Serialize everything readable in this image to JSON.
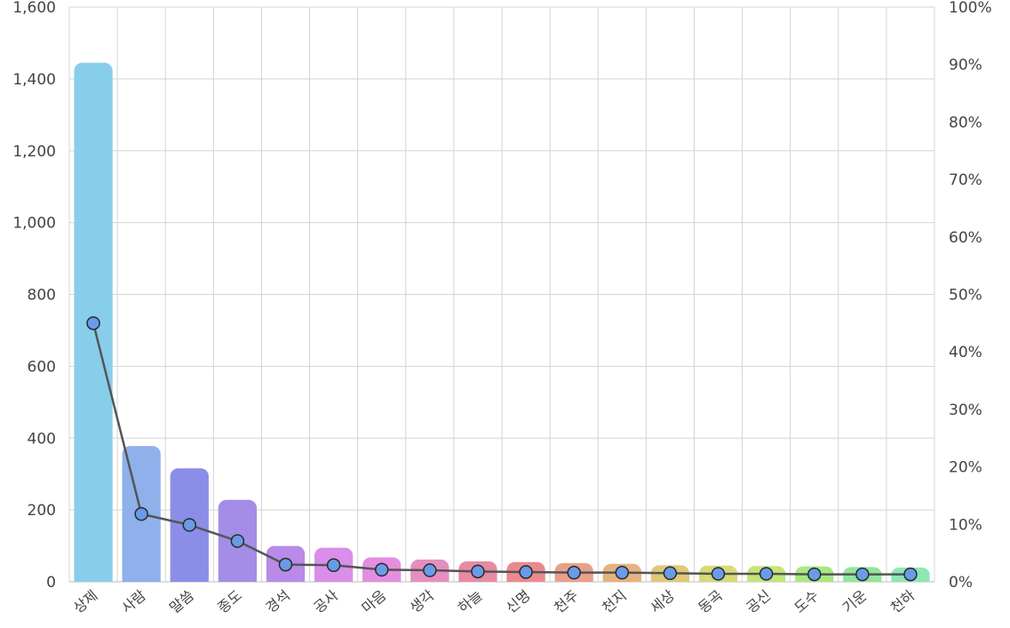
{
  "chart_data": {
    "type": "bar",
    "title": "",
    "xlabel": "",
    "ylabel": "",
    "ylim": [
      0,
      1600
    ],
    "y2lim": [
      0,
      100
    ],
    "grid": true,
    "yticks": [
      "0",
      "200",
      "400",
      "600",
      "800",
      "1,000",
      "1,200",
      "1,400",
      "1,600"
    ],
    "y2ticks": [
      "0%",
      "10%",
      "20%",
      "30%",
      "40%",
      "50%",
      "60%",
      "70%",
      "80%",
      "90%",
      "100%"
    ],
    "categories": [
      "상제",
      "사람",
      "말씀",
      "종도",
      "경석",
      "공사",
      "마음",
      "생각",
      "하늘",
      "신명",
      "천주",
      "천지",
      "세상",
      "동곡",
      "공신",
      "도수",
      "기운",
      "천하"
    ],
    "series": [
      {
        "type": "bar",
        "values": [
          1445,
          378,
          316,
          228,
          100,
          95,
          68,
          62,
          57,
          55,
          52,
          50,
          46,
          45,
          44,
          43,
          41,
          40
        ],
        "colors": [
          "#87ceeb",
          "#8fb0ea",
          "#8b8ee6",
          "#a48de6",
          "#b98ae8",
          "#d98ee9",
          "#e48ee0",
          "#e58ec0",
          "#e88aa3",
          "#ea8a8e",
          "#e9a08a",
          "#e6b27f",
          "#dfc87a",
          "#d6db78",
          "#c4e57a",
          "#a8e881",
          "#93e69d",
          "#8de8b4"
        ]
      },
      {
        "type": "line",
        "axis": "right",
        "values": [
          45.0,
          11.8,
          9.9,
          7.1,
          3.0,
          2.9,
          2.1,
          2.0,
          1.8,
          1.7,
          1.6,
          1.6,
          1.5,
          1.4,
          1.4,
          1.3,
          1.3,
          1.3
        ],
        "color": "#555555",
        "marker_color": "#6a9be8"
      }
    ]
  }
}
